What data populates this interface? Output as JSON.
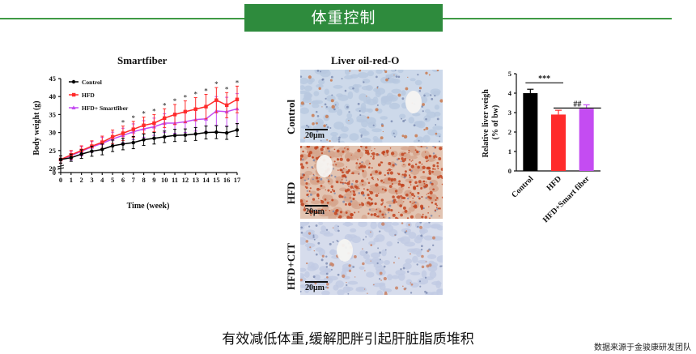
{
  "header": {
    "title": "体重控制"
  },
  "colors": {
    "accent": "#2e8b3d",
    "control": "#000000",
    "hfd": "#ff2b2b",
    "smart": "#c44cf2"
  },
  "chart_data": [
    {
      "type": "line",
      "title": "Smartfiber",
      "xlabel": "Time (week)",
      "ylabel": "Body weight (g)",
      "xlim": [
        0,
        17
      ],
      "ylim": [
        0,
        45
      ],
      "xticks": [
        0,
        1,
        2,
        3,
        4,
        5,
        6,
        7,
        8,
        9,
        10,
        11,
        12,
        13,
        14,
        15,
        16,
        17
      ],
      "yticks": [
        0,
        5,
        10,
        15,
        20,
        25,
        30,
        35,
        40,
        45
      ],
      "y_axis_break": [
        0,
        20
      ],
      "legend_position": "top-left",
      "x": [
        0,
        1,
        2,
        3,
        4,
        5,
        6,
        7,
        8,
        9,
        10,
        11,
        12,
        13,
        14,
        15,
        16,
        17
      ],
      "series": [
        {
          "name": "Control",
          "color": "#000000",
          "values": [
            22.5,
            23,
            24,
            24.8,
            25.3,
            26.3,
            26.8,
            27.2,
            28,
            28.4,
            28.8,
            29.2,
            29.3,
            29.6,
            30,
            30.1,
            29.9,
            30.7
          ],
          "errors": [
            1,
            1,
            1.2,
            1.4,
            1.5,
            1.6,
            1.6,
            1.7,
            1.6,
            1.6,
            1.6,
            1.7,
            1.7,
            1.8,
            1.8,
            1.8,
            1.8,
            1.8
          ]
        },
        {
          "name": "HFD",
          "color": "#ff2b2b",
          "values": [
            22.5,
            23.8,
            25,
            26.2,
            27.3,
            28.8,
            29.8,
            30.9,
            32,
            32.6,
            34,
            35,
            35.8,
            36.5,
            37.2,
            39,
            37.6,
            39.2
          ],
          "errors": [
            1,
            1.2,
            1.3,
            1.5,
            1.7,
            1.9,
            2,
            2.2,
            2.3,
            2.4,
            2.6,
            2.8,
            3,
            3.2,
            3.4,
            3.5,
            3.5,
            3.7
          ]
        },
        {
          "name": "HFD+ Smartfiber",
          "color": "#c44cf2",
          "values": [
            22.5,
            23.6,
            24.8,
            26,
            27,
            28.2,
            29.2,
            30.2,
            31,
            31.6,
            32.6,
            32.6,
            33,
            33.6,
            33.8,
            36,
            35.8,
            36.6
          ],
          "errors": [
            1,
            1.2,
            1.3,
            1.5,
            1.7,
            1.9,
            2,
            2.2,
            2.3,
            2.4,
            2.6,
            2.8,
            3,
            3.2,
            3.5,
            4,
            4,
            4.2
          ]
        }
      ],
      "significance_weeks": [
        6,
        7,
        8,
        9,
        10,
        11,
        12,
        13,
        14,
        15,
        16,
        17
      ],
      "significance_mark": "*"
    },
    {
      "type": "bar",
      "xlabel": "",
      "ylabel": "Relative liver weigh (% of bw)",
      "ylim": [
        0,
        5
      ],
      "yticks": [
        0,
        1,
        2,
        3,
        4,
        5
      ],
      "categories": [
        "Control",
        "HFD",
        "HFD+Smart fiber"
      ],
      "values": [
        4.0,
        2.9,
        3.2
      ],
      "errors": [
        0.2,
        0.22,
        0.2
      ],
      "colors": [
        "#000000",
        "#ff2b2b",
        "#c44cf2"
      ],
      "annotations": [
        {
          "from": "Control",
          "to": "HFD",
          "text": "***"
        },
        {
          "from": "HFD",
          "to": "HFD+Smart fiber",
          "text": "##"
        }
      ]
    }
  ],
  "micrographs": {
    "title": "Liver oil-red-O",
    "panels": [
      {
        "label": "Control",
        "scale": "20μm"
      },
      {
        "label": "HFD",
        "scale": "20μm"
      },
      {
        "label": "HFD+CIT",
        "scale": "20μm"
      }
    ]
  },
  "footer": {
    "caption": "有效减低体重,缓解肥胖引起肝脏脂质堆积",
    "source": "数据来源于金骏康研发团队"
  }
}
